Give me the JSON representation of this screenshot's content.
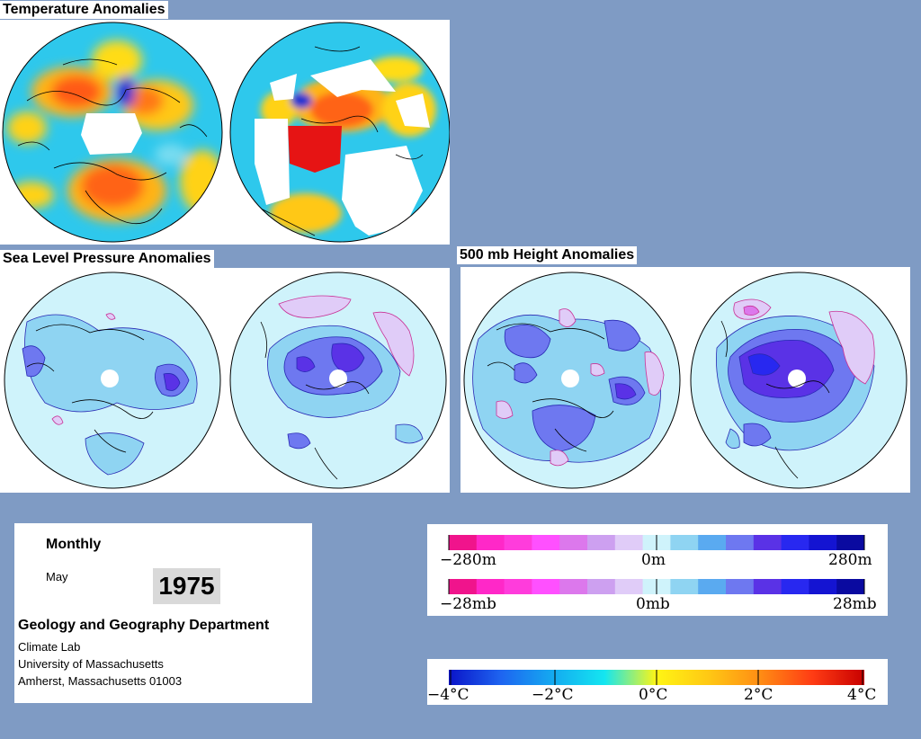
{
  "titles": {
    "temperature": "Temperature Anomalies",
    "slp": "Sea Level Pressure Anomalies",
    "height500": "500 mb Height Anomalies"
  },
  "info": {
    "period": "Monthly",
    "month": "May",
    "year": "1975",
    "department": "Geology and Geography Department",
    "lab": "Climate Lab",
    "university": "University of Massachusetts",
    "address": "Amherst, Massachusetts 01003"
  },
  "legends": {
    "height": {
      "colors": [
        "#f0148c",
        "#ff28c8",
        "#ff3cdc",
        "#ff50ff",
        "#dc78ec",
        "#cda0f0",
        "#e0ccf8",
        "#cff3fb",
        "#8fd4f2",
        "#5aaaf0",
        "#6e78f0",
        "#5a32e6",
        "#2828f0",
        "#1414d2",
        "#0a0aa0"
      ],
      "ticks": [
        "−280m",
        "0m",
        "280m"
      ]
    },
    "pressure": {
      "colors": [
        "#f0148c",
        "#ff28c8",
        "#ff3cdc",
        "#ff50ff",
        "#dc78ec",
        "#cda0f0",
        "#e0ccf8",
        "#cff3fb",
        "#8fd4f2",
        "#5aaaf0",
        "#6e78f0",
        "#5a32e6",
        "#2828f0",
        "#1414d2",
        "#0a0aa0"
      ],
      "ticks": [
        "−28mb",
        "0mb",
        "28mb"
      ]
    },
    "temperature": {
      "gradient": [
        "#0a14c8",
        "#1e64f0",
        "#14aaf0",
        "#14e6f0",
        "#fff514",
        "#ffc814",
        "#ff8c14",
        "#ff3c14",
        "#c80000"
      ],
      "ticks": [
        "−4°C",
        "−2°C",
        "0°C",
        "2°C",
        "4°C"
      ]
    }
  }
}
